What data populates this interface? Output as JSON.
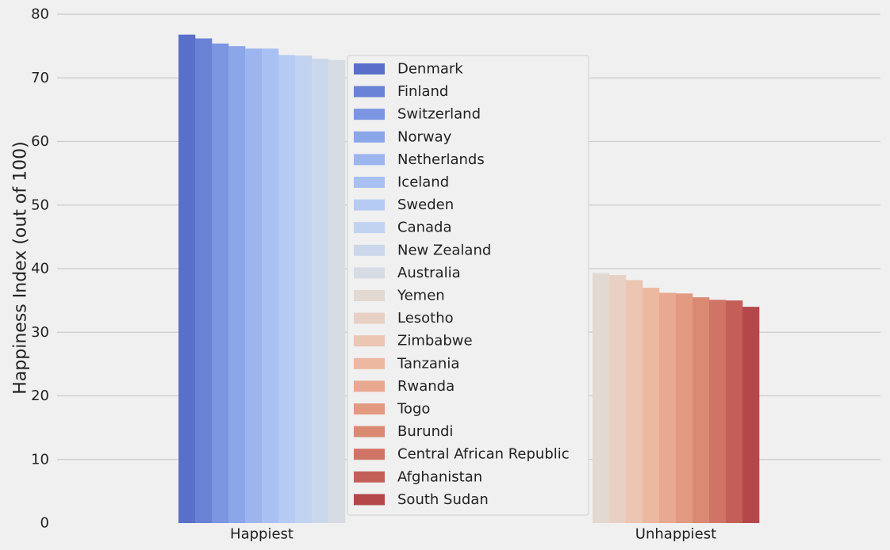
{
  "chart_data": {
    "type": "bar",
    "categories": [
      "Happiest",
      "Unhappiest"
    ],
    "ylabel": "Happiness Index (out of 100)",
    "xlabel": "",
    "ylim": [
      0,
      80
    ],
    "yticks": [
      "0",
      "10",
      "20",
      "30",
      "40",
      "50",
      "60",
      "70",
      "80"
    ],
    "grid": true,
    "legend_position": "center",
    "series": [
      {
        "name": "Denmark",
        "category": "Happiest",
        "value": 76.8,
        "color": "#5a6fc9"
      },
      {
        "name": "Finland",
        "category": "Happiest",
        "value": 76.2,
        "color": "#6a82d6"
      },
      {
        "name": "Switzerland",
        "category": "Happiest",
        "value": 75.4,
        "color": "#7b95e0"
      },
      {
        "name": "Norway",
        "category": "Happiest",
        "value": 75.0,
        "color": "#8ca6ea"
      },
      {
        "name": "Netherlands",
        "category": "Happiest",
        "value": 74.6,
        "color": "#9cb5ef"
      },
      {
        "name": "Iceland",
        "category": "Happiest",
        "value": 74.6,
        "color": "#a8c1f2"
      },
      {
        "name": "Sweden",
        "category": "Happiest",
        "value": 73.6,
        "color": "#b5cbf3"
      },
      {
        "name": "Canada",
        "category": "Happiest",
        "value": 73.5,
        "color": "#c1d3f0"
      },
      {
        "name": "New Zealand",
        "category": "Happiest",
        "value": 73.0,
        "color": "#cbd8eb"
      },
      {
        "name": "Australia",
        "category": "Happiest",
        "value": 72.8,
        "color": "#d6dbe4"
      },
      {
        "name": "Yemen",
        "category": "Unhappiest",
        "value": 39.3,
        "color": "#e1d9d2"
      },
      {
        "name": "Lesotho",
        "category": "Unhappiest",
        "value": 39.0,
        "color": "#e9d0c4"
      },
      {
        "name": "Zimbabwe",
        "category": "Unhappiest",
        "value": 38.2,
        "color": "#ecc5b3"
      },
      {
        "name": "Tanzania",
        "category": "Unhappiest",
        "value": 37.0,
        "color": "#edb8a0"
      },
      {
        "name": "Rwanda",
        "category": "Unhappiest",
        "value": 36.2,
        "color": "#e9a890"
      },
      {
        "name": "Togo",
        "category": "Unhappiest",
        "value": 36.1,
        "color": "#e39a81"
      },
      {
        "name": "Burundi",
        "category": "Unhappiest",
        "value": 35.5,
        "color": "#da8a73"
      },
      {
        "name": "Central African Republic",
        "category": "Unhappiest",
        "value": 35.1,
        "color": "#d07566"
      },
      {
        "name": "Afghanistan",
        "category": "Unhappiest",
        "value": 35.0,
        "color": "#c45f58"
      },
      {
        "name": "South Sudan",
        "category": "Unhappiest",
        "value": 34.0,
        "color": "#b5474a"
      }
    ]
  }
}
